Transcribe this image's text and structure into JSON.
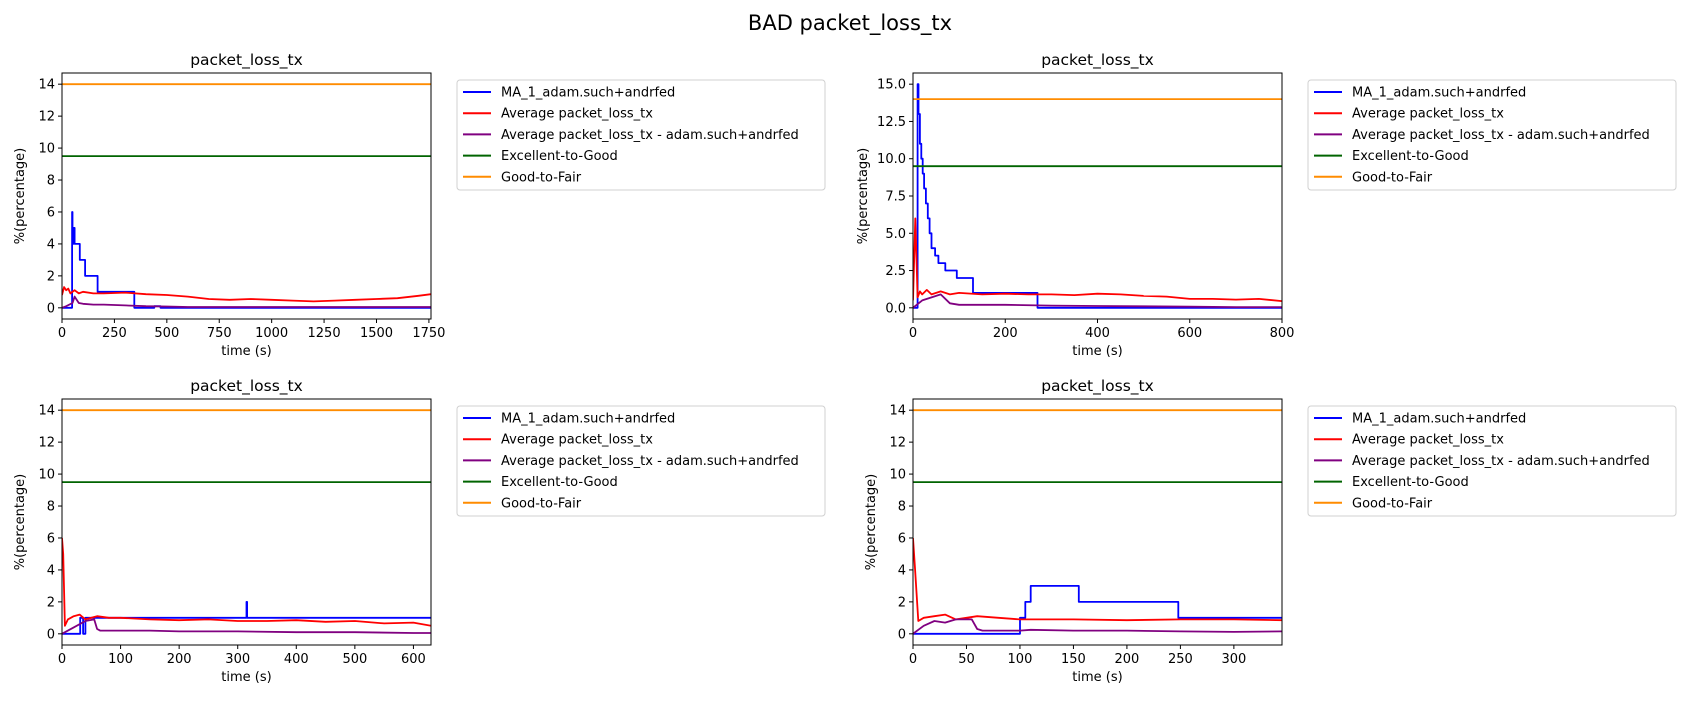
{
  "figure": {
    "title": "BAD packet_loss_tx"
  },
  "legend_labels": [
    "MA_1_adam.such+andrfed",
    "Average packet_loss_tx",
    "Average packet_loss_tx - adam.such+andrfed",
    "Excellent-to-Good",
    "Good-to-Fair"
  ],
  "colors": {
    "ma": "#0000ff",
    "avg": "#ff0000",
    "avg_user": "#800080",
    "excellent_to_good": "#006400",
    "good_to_fair": "#ff8c00"
  },
  "chart_data": [
    {
      "type": "line",
      "title": "packet_loss_tx",
      "xlabel": "time (s)",
      "ylabel": "%(percentage)",
      "xlim": [
        0,
        1760
      ],
      "ylim": [
        -0.7,
        14.7
      ],
      "xticks": [
        0,
        250,
        500,
        750,
        1000,
        1250,
        1500,
        1750
      ],
      "yticks": [
        0,
        2,
        4,
        6,
        8,
        10,
        12,
        14
      ],
      "ytick_labels": [
        "0",
        "2",
        "4",
        "6",
        "8",
        "10",
        "12",
        "14"
      ],
      "legend_position": "outside-right",
      "series": [
        {
          "name": "MA_1_adam.such+andrfed",
          "color_key": "ma",
          "step": true,
          "x": [
            0,
            40,
            48,
            50,
            55,
            60,
            70,
            85,
            110,
            170,
            340,
            345,
            440,
            470,
            1760
          ],
          "y": [
            0,
            0,
            6,
            4,
            5,
            4,
            4,
            3,
            2,
            1,
            1,
            0,
            0.1,
            0,
            0
          ]
        },
        {
          "name": "Average packet_loss_tx",
          "color_key": "avg",
          "step": false,
          "x": [
            0,
            10,
            20,
            30,
            40,
            60,
            80,
            100,
            150,
            200,
            300,
            400,
            500,
            600,
            700,
            800,
            900,
            1000,
            1100,
            1200,
            1300,
            1400,
            1500,
            1600,
            1700,
            1760
          ],
          "y": [
            0.8,
            1.3,
            1.1,
            1.2,
            0.9,
            1.1,
            0.9,
            1.0,
            0.9,
            0.9,
            0.95,
            0.85,
            0.8,
            0.7,
            0.55,
            0.5,
            0.55,
            0.5,
            0.45,
            0.4,
            0.45,
            0.5,
            0.55,
            0.6,
            0.75,
            0.85
          ]
        },
        {
          "name": "Average packet_loss_tx - adam.such+andrfed",
          "color_key": "avg_user",
          "step": false,
          "x": [
            0,
            20,
            50,
            60,
            80,
            100,
            150,
            200,
            300,
            400,
            500,
            600,
            1760
          ],
          "y": [
            0,
            0.1,
            0.3,
            0.7,
            0.3,
            0.25,
            0.2,
            0.2,
            0.15,
            0.1,
            0.08,
            0.05,
            0.05
          ]
        },
        {
          "name": "Excellent-to-Good",
          "color_key": "excellent_to_good",
          "step": false,
          "x": [
            0,
            1760
          ],
          "y": [
            9.5,
            9.5
          ]
        },
        {
          "name": "Good-to-Fair",
          "color_key": "good_to_fair",
          "step": false,
          "x": [
            0,
            1760
          ],
          "y": [
            14,
            14
          ]
        }
      ]
    },
    {
      "type": "line",
      "title": "packet_loss_tx",
      "xlabel": "time (s)",
      "ylabel": "%(percentage)",
      "xlim": [
        0,
        800
      ],
      "ylim": [
        -0.75,
        15.75
      ],
      "xticks": [
        0,
        200,
        400,
        600,
        800
      ],
      "yticks": [
        0,
        2.5,
        5,
        7.5,
        10,
        12.5,
        15
      ],
      "ytick_labels": [
        "0.0",
        "2.5",
        "5.0",
        "7.5",
        "10.0",
        "12.5",
        "15.0"
      ],
      "legend_position": "outside-right",
      "series": [
        {
          "name": "MA_1_adam.such+andrfed",
          "color_key": "ma",
          "step": true,
          "x": [
            0,
            8,
            10,
            12,
            15,
            18,
            21,
            24,
            28,
            32,
            36,
            40,
            48,
            55,
            70,
            95,
            130,
            200,
            265,
            270,
            800
          ],
          "y": [
            0,
            0,
            15,
            13,
            11,
            10,
            9,
            8,
            7,
            6,
            5,
            4,
            3.5,
            3,
            2.5,
            2,
            1,
            1,
            1,
            0,
            0
          ]
        },
        {
          "name": "Average packet_loss_tx",
          "color_key": "avg",
          "step": false,
          "x": [
            0,
            5,
            10,
            15,
            20,
            30,
            40,
            50,
            60,
            80,
            100,
            150,
            200,
            250,
            300,
            350,
            400,
            450,
            500,
            550,
            600,
            650,
            700,
            750,
            800
          ],
          "y": [
            0.5,
            6,
            0.7,
            1.1,
            0.9,
            1.2,
            0.9,
            1.0,
            1.1,
            0.9,
            1.0,
            0.9,
            0.95,
            0.9,
            0.9,
            0.85,
            0.95,
            0.9,
            0.8,
            0.75,
            0.6,
            0.6,
            0.55,
            0.6,
            0.45
          ]
        },
        {
          "name": "Average packet_loss_tx - adam.such+andrfed",
          "color_key": "avg_user",
          "step": false,
          "x": [
            0,
            20,
            40,
            50,
            60,
            80,
            100,
            150,
            200,
            300,
            400,
            500,
            600,
            700,
            800
          ],
          "y": [
            0,
            0.5,
            0.7,
            0.8,
            0.9,
            0.3,
            0.2,
            0.2,
            0.2,
            0.15,
            0.12,
            0.1,
            0.08,
            0.05,
            0.05
          ]
        },
        {
          "name": "Excellent-to-Good",
          "color_key": "excellent_to_good",
          "step": false,
          "x": [
            0,
            800
          ],
          "y": [
            9.5,
            9.5
          ]
        },
        {
          "name": "Good-to-Fair",
          "color_key": "good_to_fair",
          "step": false,
          "x": [
            0,
            800
          ],
          "y": [
            14,
            14
          ]
        }
      ]
    },
    {
      "type": "line",
      "title": "packet_loss_tx",
      "xlabel": "time (s)",
      "ylabel": "%(percentage)",
      "xlim": [
        0,
        630
      ],
      "ylim": [
        -0.7,
        14.7
      ],
      "xticks": [
        0,
        100,
        200,
        300,
        400,
        500,
        600
      ],
      "yticks": [
        0,
        2,
        4,
        6,
        8,
        10,
        12,
        14
      ],
      "ytick_labels": [
        "0",
        "2",
        "4",
        "6",
        "8",
        "10",
        "12",
        "14"
      ],
      "legend_position": "outside-right",
      "series": [
        {
          "name": "MA_1_adam.such+andrfed",
          "color_key": "ma",
          "step": true,
          "x": [
            0,
            30,
            31,
            35,
            36,
            38,
            40,
            45,
            60,
            315,
            316,
            318,
            630
          ],
          "y": [
            0,
            0,
            1,
            1,
            0,
            0,
            1,
            1,
            1,
            2,
            1,
            1,
            1
          ]
        },
        {
          "name": "Average packet_loss_tx",
          "color_key": "avg",
          "step": false,
          "x": [
            0,
            2,
            5,
            10,
            20,
            30,
            40,
            50,
            60,
            80,
            100,
            150,
            200,
            250,
            300,
            350,
            400,
            450,
            500,
            550,
            600,
            630
          ],
          "y": [
            6,
            5,
            0.5,
            0.9,
            1.1,
            1.2,
            0.9,
            1.0,
            1.1,
            1.0,
            1.0,
            0.9,
            0.85,
            0.9,
            0.8,
            0.8,
            0.85,
            0.75,
            0.8,
            0.65,
            0.7,
            0.5
          ]
        },
        {
          "name": "Average packet_loss_tx - adam.such+andrfed",
          "color_key": "avg_user",
          "step": false,
          "x": [
            0,
            20,
            40,
            55,
            60,
            65,
            100,
            150,
            200,
            300,
            400,
            500,
            600,
            630
          ],
          "y": [
            0,
            0.4,
            0.8,
            0.9,
            0.3,
            0.2,
            0.2,
            0.2,
            0.15,
            0.15,
            0.1,
            0.1,
            0.05,
            0.05
          ]
        },
        {
          "name": "Excellent-to-Good",
          "color_key": "excellent_to_good",
          "step": false,
          "x": [
            0,
            630
          ],
          "y": [
            9.5,
            9.5
          ]
        },
        {
          "name": "Good-to-Fair",
          "color_key": "good_to_fair",
          "step": false,
          "x": [
            0,
            630
          ],
          "y": [
            14,
            14
          ]
        }
      ]
    },
    {
      "type": "line",
      "title": "packet_loss_tx",
      "xlabel": "time (s)",
      "ylabel": "%(percentage)",
      "xlim": [
        0,
        345
      ],
      "ylim": [
        -0.7,
        14.7
      ],
      "xticks": [
        0,
        50,
        100,
        150,
        200,
        250,
        300
      ],
      "yticks": [
        0,
        2,
        4,
        6,
        8,
        10,
        12,
        14
      ],
      "ytick_labels": [
        "0",
        "2",
        "4",
        "6",
        "8",
        "10",
        "12",
        "14"
      ],
      "legend_position": "outside-right",
      "series": [
        {
          "name": "MA_1_adam.such+andrfed",
          "color_key": "ma",
          "step": true,
          "x": [
            0,
            100,
            105,
            110,
            155,
            248,
            345
          ],
          "y": [
            0,
            1,
            2,
            3,
            2,
            1,
            1
          ]
        },
        {
          "name": "Average packet_loss_tx",
          "color_key": "avg",
          "step": false,
          "x": [
            0,
            2,
            5,
            10,
            20,
            30,
            40,
            50,
            60,
            80,
            100,
            120,
            150,
            200,
            250,
            300,
            345
          ],
          "y": [
            6,
            4,
            0.8,
            1.0,
            1.1,
            1.2,
            0.9,
            1.0,
            1.1,
            1.0,
            0.9,
            0.9,
            0.9,
            0.85,
            0.9,
            0.9,
            0.85
          ]
        },
        {
          "name": "Average packet_loss_tx - adam.such+andrfed",
          "color_key": "avg_user",
          "step": false,
          "x": [
            0,
            10,
            20,
            30,
            40,
            55,
            60,
            65,
            100,
            110,
            150,
            200,
            250,
            300,
            345
          ],
          "y": [
            0,
            0.5,
            0.8,
            0.7,
            0.9,
            0.9,
            0.3,
            0.2,
            0.2,
            0.25,
            0.2,
            0.2,
            0.15,
            0.12,
            0.15
          ]
        },
        {
          "name": "Excellent-to-Good",
          "color_key": "excellent_to_good",
          "step": false,
          "x": [
            0,
            345
          ],
          "y": [
            9.5,
            9.5
          ]
        },
        {
          "name": "Good-to-Fair",
          "color_key": "good_to_fair",
          "step": false,
          "x": [
            0,
            345
          ],
          "y": [
            14,
            14
          ]
        }
      ]
    }
  ]
}
